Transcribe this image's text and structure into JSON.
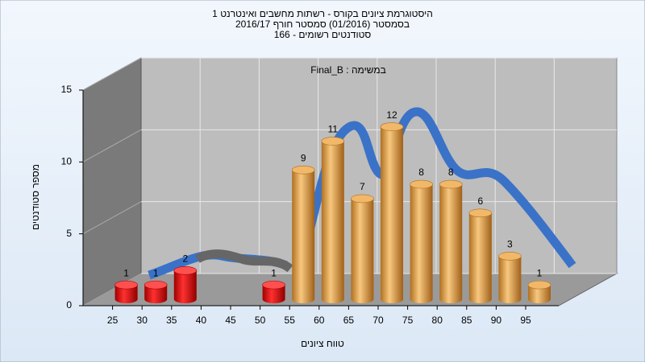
{
  "chart_data": {
    "type": "bar",
    "title": [
      "היסטוגרמת ציונים בקורס - רשתות מחשבים ואינטרנט 1",
      "בסמסטר (01/2016)  סמסטר חורף 2016/17",
      "סטודנטים רשומים - 166"
    ],
    "subtitle": "Final_B : במשימה",
    "x_label": "טווח ציונים",
    "y_label": "מספר סטודנטים",
    "categories": [
      25,
      30,
      35,
      40,
      45,
      50,
      55,
      60,
      65,
      70,
      75,
      80,
      85,
      90,
      95
    ],
    "values": [
      1,
      1,
      2,
      0,
      0,
      1,
      9,
      11,
      7,
      12,
      8,
      8,
      6,
      3,
      1
    ],
    "value_labels": [
      "1",
      "1",
      "2",
      null,
      null,
      "1",
      "9",
      "11",
      "7",
      "12",
      "8",
      "8",
      "6",
      "3",
      "1"
    ],
    "colors": [
      "red",
      "red",
      "red",
      "red",
      "red",
      "red",
      "orange",
      "orange",
      "orange",
      "orange",
      "orange",
      "orange",
      "orange",
      "orange",
      "orange"
    ],
    "ylim": [
      0,
      15
    ],
    "yticks": [
      0,
      5,
      10,
      15
    ],
    "grid": true
  }
}
